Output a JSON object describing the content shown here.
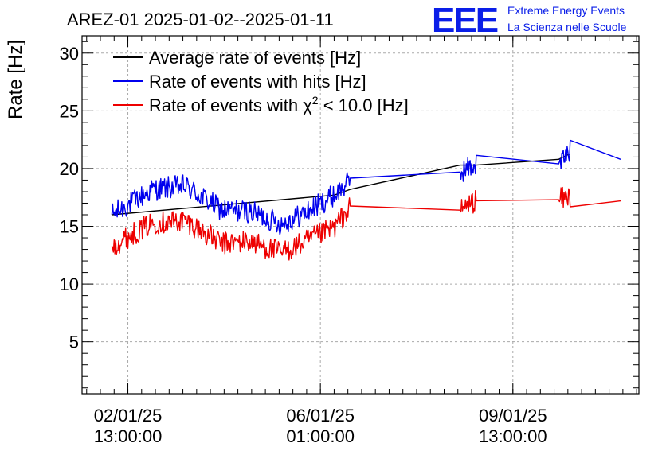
{
  "chart_data": {
    "type": "line",
    "title": "AREZ-01 2025-01-02--2025-01-11",
    "ylabel": "Rate [Hz]",
    "xlabel": "",
    "ylim": [
      0.5,
      31.5
    ],
    "yticks": [
      5,
      10,
      15,
      20,
      25,
      30
    ],
    "x_tick_labels": [
      {
        "date": "02/01/25",
        "time": "13:00:00"
      },
      {
        "date": "06/01/25",
        "time": "01:00:00"
      },
      {
        "date": "09/01/25",
        "time": "13:00:00"
      }
    ],
    "grid": true,
    "legend_position": "top-left",
    "series": [
      {
        "name": "Average rate of events [Hz]",
        "color": "#000000",
        "x": [
          "2025-01-02 06:00",
          "2025-01-06 07:00",
          "2025-01-06 14:00",
          "2025-01-08 14:00",
          "2025-01-08 21:00",
          "2025-01-10 09:00",
          "2025-01-10 14:00"
        ],
        "values": [
          16.0,
          17.7,
          18.2,
          20.3,
          20.3,
          20.8,
          21.3
        ]
      },
      {
        "name": "Rate of events with hits [Hz]",
        "color": "#0000ee",
        "x": [
          "2025-01-02 06:00",
          "2025-01-03 00:00",
          "2025-01-03 14:00",
          "2025-01-04 06:00",
          "2025-01-04 18:00",
          "2025-01-05 08:00",
          "2025-01-05 18:00",
          "2025-01-06 07:00",
          "2025-01-06 14:00",
          "2025-01-08 14:00",
          "2025-01-08 21:00",
          "2025-01-10 09:00",
          "2025-01-10 14:00",
          "2025-01-11 12:00"
        ],
        "values": [
          16.0,
          18.2,
          18.5,
          16.4,
          16.3,
          15.2,
          16.1,
          17.7,
          18.9,
          19.7,
          20.4,
          20.4,
          21.5,
          20.8
        ]
      },
      {
        "name": "Rate of events with χ² < 10.0 [Hz]",
        "color": "#ee0000",
        "x": [
          "2025-01-02 06:00",
          "2025-01-03 00:00",
          "2025-01-03 14:00",
          "2025-01-04 06:00",
          "2025-01-04 18:00",
          "2025-01-05 08:00",
          "2025-01-05 18:00",
          "2025-01-06 07:00",
          "2025-01-06 14:00",
          "2025-01-08 14:00",
          "2025-01-08 21:00",
          "2025-01-10 09:00",
          "2025-01-10 14:00",
          "2025-01-11 12:00"
        ],
        "values": [
          13.3,
          15.3,
          15.5,
          13.5,
          13.7,
          12.7,
          13.6,
          14.9,
          16.6,
          16.4,
          17.3,
          17.3,
          17.6,
          17.2
        ]
      }
    ]
  },
  "logo": {
    "mark": "EEE",
    "line1": "Extreme Energy Events",
    "line2": "La Scienza nelle Scuole"
  },
  "legend": {
    "black": "Average rate of events [Hz]",
    "blue": "Rate of events with hits [Hz]",
    "red_prefix": "Rate of events with ",
    "red_chi": "χ",
    "red_sup": "2",
    "red_suffix": " < 10.0 [Hz]"
  }
}
